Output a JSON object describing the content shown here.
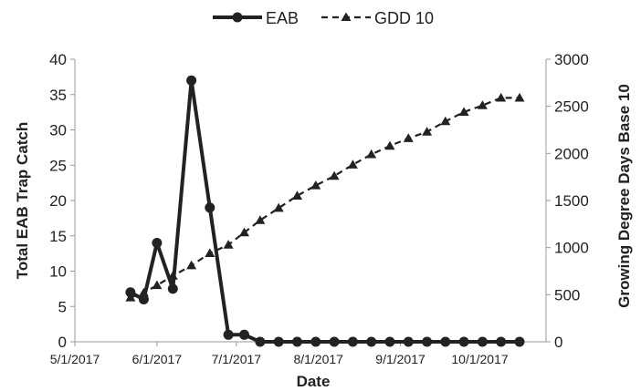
{
  "chart_data": {
    "type": "line",
    "title": "",
    "xlabel": "Date",
    "ylabel": "Total EAB Trap Catch",
    "y2label": "Growing Degree Days Base 10",
    "xlim": [
      "2017-05-01",
      "2017-10-26"
    ],
    "ylim": [
      0,
      40
    ],
    "y2lim": [
      0,
      3000
    ],
    "x_ticks": [
      "5/1/2017",
      "6/1/2017",
      "7/1/2017",
      "8/1/2017",
      "9/1/2017",
      "10/1/2017"
    ],
    "x_tick_dates": [
      "2017-05-01",
      "2017-06-01",
      "2017-07-01",
      "2017-08-01",
      "2017-09-01",
      "2017-10-01"
    ],
    "y_ticks": [
      0,
      5,
      10,
      15,
      20,
      25,
      30,
      35,
      40
    ],
    "y2_ticks": [
      0,
      500,
      1000,
      1500,
      2000,
      2500,
      3000
    ],
    "grid": false,
    "legend_position": "top-center",
    "series": [
      {
        "name": "EAB",
        "axis": "left",
        "style": "solid",
        "marker": "circle",
        "color": "#222222",
        "x": [
          "2017-05-22",
          "2017-05-27",
          "2017-06-01",
          "2017-06-07",
          "2017-06-14",
          "2017-06-21",
          "2017-06-28",
          "2017-07-04",
          "2017-07-10",
          "2017-07-17",
          "2017-07-24",
          "2017-07-31",
          "2017-08-07",
          "2017-08-14",
          "2017-08-21",
          "2017-08-28",
          "2017-09-04",
          "2017-09-11",
          "2017-09-18",
          "2017-09-25",
          "2017-10-02",
          "2017-10-09",
          "2017-10-16"
        ],
        "values": [
          7,
          6,
          14,
          7.5,
          37,
          19,
          1,
          1,
          0,
          0,
          0,
          0,
          0,
          0,
          0,
          0,
          0,
          0,
          0,
          0,
          0,
          0,
          0
        ]
      },
      {
        "name": "GDD 10",
        "axis": "right",
        "style": "dashed",
        "marker": "triangle",
        "color": "#222222",
        "x": [
          "2017-05-22",
          "2017-05-27",
          "2017-06-01",
          "2017-06-07",
          "2017-06-14",
          "2017-06-21",
          "2017-06-28",
          "2017-07-04",
          "2017-07-10",
          "2017-07-17",
          "2017-07-24",
          "2017-07-31",
          "2017-08-07",
          "2017-08-14",
          "2017-08-21",
          "2017-08-28",
          "2017-09-04",
          "2017-09-11",
          "2017-09-18",
          "2017-09-25",
          "2017-10-02",
          "2017-10-09",
          "2017-10-16"
        ],
        "values": [
          470,
          520,
          600,
          700,
          810,
          940,
          1030,
          1160,
          1290,
          1420,
          1550,
          1660,
          1760,
          1880,
          1990,
          2080,
          2160,
          2230,
          2340,
          2440,
          2510,
          2590,
          2590
        ]
      }
    ]
  }
}
